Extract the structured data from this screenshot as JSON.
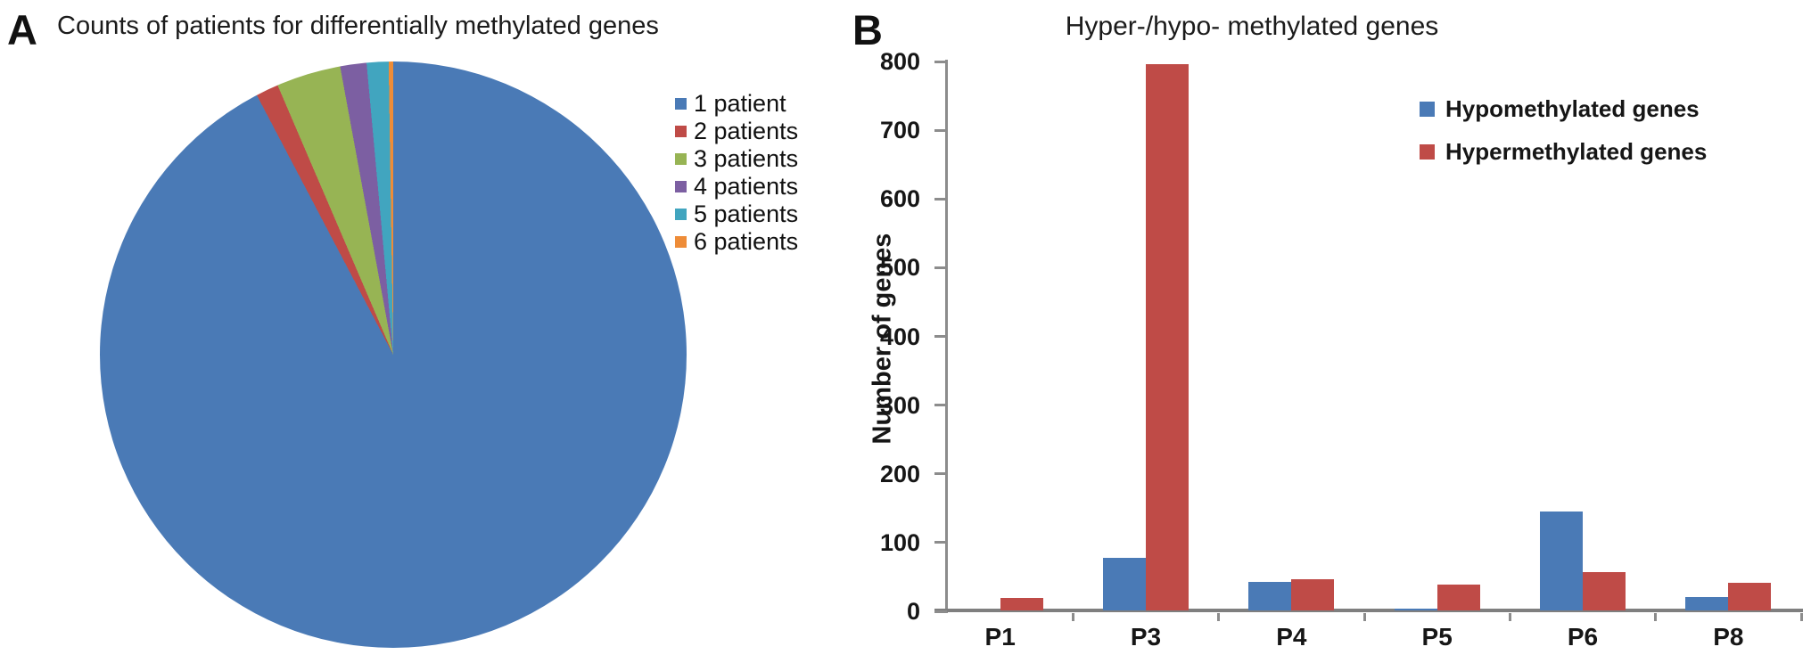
{
  "chart_data": [
    {
      "id": "pie-panel",
      "type": "pie",
      "panel": "A",
      "title": "Counts of patients for differentially methylated genes",
      "legend_position": "right",
      "slices": [
        {
          "label": "1 patient",
          "pct": 92.3,
          "color": "#4A7AB6"
        },
        {
          "label": "2 patients",
          "pct": 1.25,
          "color": "#BF4B47"
        },
        {
          "label": "3 patients",
          "pct": 3.55,
          "color": "#97B454"
        },
        {
          "label": "4 patients",
          "pct": 1.45,
          "color": "#7C5FA2"
        },
        {
          "label": "5 patients",
          "pct": 1.2,
          "color": "#41A5BF"
        },
        {
          "label": "6 patients",
          "pct": 0.25,
          "color": "#EE8C38"
        }
      ]
    },
    {
      "id": "bar-panel",
      "type": "bar",
      "panel": "B",
      "title": "Hyper-/hypo- methylated genes",
      "ylabel": "Number of genes",
      "xlabel": "",
      "categories": [
        "P1",
        "P3",
        "P4",
        "P5",
        "P6",
        "P8"
      ],
      "series": [
        {
          "name": "Hypomethylated genes",
          "color": "#4A7AB6",
          "values": [
            0,
            76,
            42,
            2,
            144,
            20
          ]
        },
        {
          "name": "Hypermethylated genes",
          "color": "#BF4B47",
          "values": [
            18,
            795,
            46,
            38,
            56,
            40
          ]
        }
      ],
      "ylim": [
        0,
        800
      ],
      "y_ticks": [
        0,
        100,
        200,
        300,
        400,
        500,
        600,
        700,
        800
      ],
      "grid": false,
      "legend_position": "upper right",
      "axis_color": "#8c8c8c"
    }
  ]
}
